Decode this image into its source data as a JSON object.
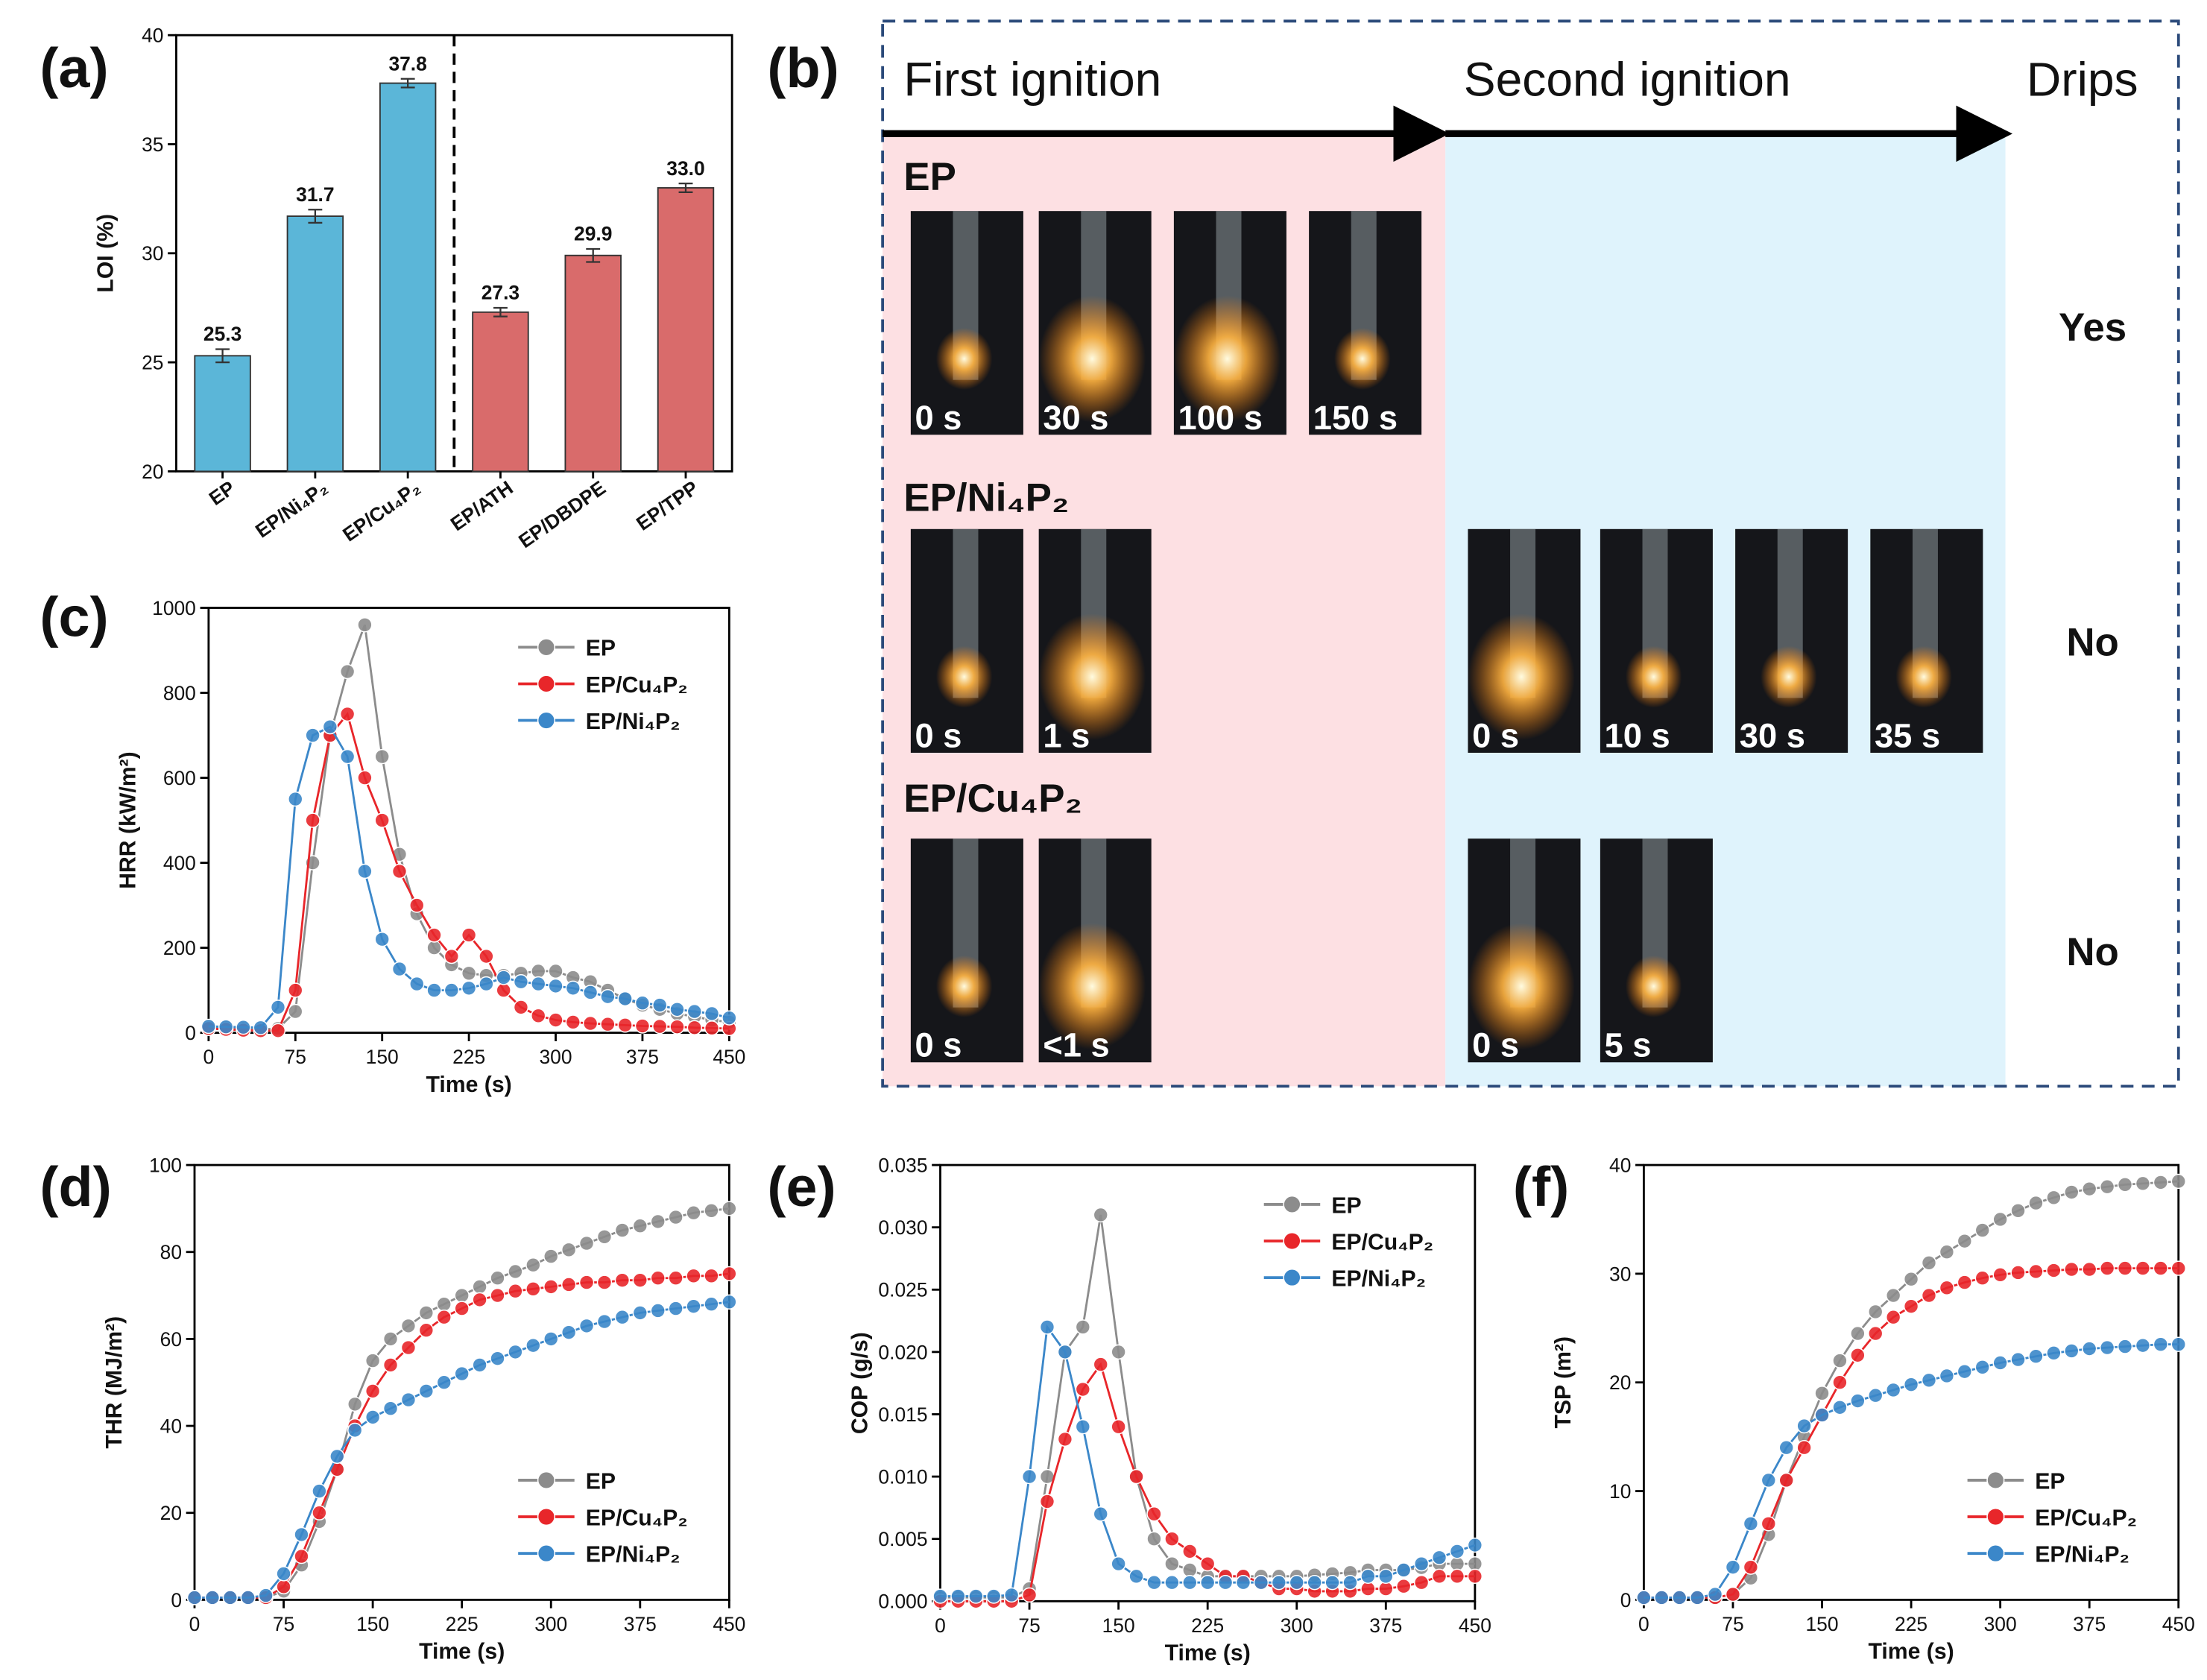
{
  "chart_data": [
    {
      "type": "bar",
      "panel": "(a)",
      "ylabel": "LOI (%)",
      "categories": [
        "EP",
        "EP/Ni₄P₂",
        "EP/Cu₄P₂",
        "EP/ATH",
        "EP/DBDPE",
        "EP/TPP"
      ],
      "values": [
        25.3,
        31.7,
        37.8,
        27.3,
        29.9,
        33.0
      ],
      "value_labels": [
        "25.3",
        "31.7",
        "37.8",
        "27.3",
        "29.9",
        "33.0"
      ],
      "errors": [
        0.3,
        0.3,
        0.2,
        0.2,
        0.3,
        0.2
      ],
      "colors": [
        "#5bb6d8",
        "#5bb6d8",
        "#5bb6d8",
        "#d96b6b",
        "#d96b6b",
        "#d96b6b"
      ],
      "ylim": [
        20,
        40
      ],
      "yticks": [
        20,
        25,
        30,
        35,
        40
      ]
    },
    {
      "type": "line",
      "panel": "(c)",
      "xlabel": "Time (s)",
      "ylabel": "HRR (kW/m²)",
      "legend": "upper right",
      "x": [
        0,
        15,
        30,
        45,
        60,
        75,
        90,
        105,
        120,
        135,
        150,
        165,
        180,
        195,
        210,
        225,
        240,
        255,
        270,
        285,
        300,
        315,
        330,
        345,
        360,
        375,
        390,
        405,
        420,
        435,
        450
      ],
      "xlim": [
        0,
        450
      ],
      "xticks": [
        0,
        75,
        150,
        225,
        300,
        375,
        450
      ],
      "ylim": [
        0,
        1000
      ],
      "yticks": [
        0,
        200,
        400,
        600,
        800,
        1000
      ],
      "series": [
        {
          "name": "EP",
          "color": "#8c8c8c",
          "values": [
            15,
            12,
            10,
            8,
            10,
            50,
            400,
            700,
            850,
            960,
            650,
            420,
            280,
            200,
            160,
            140,
            135,
            135,
            140,
            145,
            145,
            130,
            120,
            100,
            80,
            65,
            55,
            45,
            38,
            30,
            25
          ]
        },
        {
          "name": "EP/Cu₄P₂",
          "color": "#e8262a",
          "values": [
            10,
            8,
            6,
            5,
            5,
            100,
            500,
            700,
            750,
            600,
            500,
            380,
            300,
            230,
            180,
            230,
            180,
            100,
            60,
            40,
            30,
            25,
            22,
            20,
            18,
            16,
            15,
            14,
            12,
            11,
            10
          ]
        },
        {
          "name": "EP/Ni₄P₂",
          "color": "#3b87c9",
          "values": [
            15,
            14,
            13,
            12,
            60,
            550,
            700,
            720,
            650,
            380,
            220,
            150,
            115,
            100,
            100,
            105,
            115,
            130,
            120,
            115,
            110,
            105,
            95,
            85,
            80,
            70,
            65,
            55,
            50,
            45,
            35
          ]
        }
      ]
    },
    {
      "type": "line",
      "panel": "(d)",
      "xlabel": "Time (s)",
      "ylabel": "THR (MJ/m²)",
      "legend": "lower right",
      "x": [
        0,
        15,
        30,
        45,
        60,
        75,
        90,
        105,
        120,
        135,
        150,
        165,
        180,
        195,
        210,
        225,
        240,
        255,
        270,
        285,
        300,
        315,
        330,
        345,
        360,
        375,
        390,
        405,
        420,
        435,
        450
      ],
      "xlim": [
        0,
        450
      ],
      "xticks": [
        0,
        75,
        150,
        225,
        300,
        375,
        450
      ],
      "ylim": [
        0,
        100
      ],
      "yticks": [
        0,
        20,
        40,
        60,
        80,
        100
      ],
      "series": [
        {
          "name": "EP",
          "color": "#8c8c8c",
          "values": [
            0.5,
            0.5,
            0.5,
            0.5,
            0.5,
            2,
            8,
            18,
            30,
            45,
            55,
            60,
            63,
            66,
            68,
            70,
            72,
            74,
            75.5,
            77,
            79,
            80.5,
            82,
            83.5,
            85,
            86,
            87,
            88,
            89,
            89.5,
            90
          ]
        },
        {
          "name": "EP/Cu₄P₂",
          "color": "#e8262a",
          "values": [
            0.5,
            0.5,
            0.5,
            0.5,
            0.5,
            3,
            10,
            20,
            30,
            40,
            48,
            54,
            58,
            62,
            65,
            67,
            69,
            70,
            71,
            71.5,
            72,
            72.5,
            73,
            73,
            73.5,
            73.5,
            74,
            74,
            74.5,
            74.5,
            75
          ]
        },
        {
          "name": "EP/Ni₄P₂",
          "color": "#3b87c9",
          "values": [
            0.5,
            0.5,
            0.5,
            0.5,
            1,
            6,
            15,
            25,
            33,
            39,
            42,
            44,
            46,
            48,
            50,
            52,
            54,
            55.5,
            57,
            58.5,
            60,
            61.5,
            63,
            64,
            65,
            66,
            66.5,
            67,
            67.5,
            68,
            68.5
          ]
        }
      ]
    },
    {
      "type": "line",
      "panel": "(e)",
      "xlabel": "Time (s)",
      "ylabel": "COP (g/s)",
      "legend": "upper right",
      "x": [
        0,
        15,
        30,
        45,
        60,
        75,
        90,
        105,
        120,
        135,
        150,
        165,
        180,
        195,
        210,
        225,
        240,
        255,
        270,
        285,
        300,
        315,
        330,
        345,
        360,
        375,
        390,
        405,
        420,
        435,
        450
      ],
      "xlim": [
        0,
        450
      ],
      "xticks": [
        0,
        75,
        150,
        225,
        300,
        375,
        450
      ],
      "ylim": [
        0,
        0.035
      ],
      "yticks": [
        {
          "value": 0,
          "label": "0.000"
        },
        0.005,
        {
          "value": 0.01,
          "label": "0.010"
        },
        0.015,
        {
          "value": 0.02,
          "label": "0.020"
        },
        0.025,
        {
          "value": 0.03,
          "label": "0.030"
        },
        0.035
      ],
      "series": [
        {
          "name": "EP",
          "color": "#8c8c8c",
          "values": [
            0.0003,
            0.0003,
            0.0003,
            0.0003,
            0.0003,
            0.001,
            0.01,
            0.02,
            0.022,
            0.031,
            0.02,
            0.01,
            0.005,
            0.003,
            0.0025,
            0.002,
            0.002,
            0.002,
            0.002,
            0.002,
            0.002,
            0.0021,
            0.0022,
            0.0023,
            0.0025,
            0.0025,
            0.0025,
            0.0027,
            0.003,
            0.003,
            0.003
          ]
        },
        {
          "name": "EP/Cu₄P₂",
          "color": "#e8262a",
          "values": [
            0,
            0,
            0,
            0,
            0,
            0.0005,
            0.008,
            0.013,
            0.017,
            0.019,
            0.014,
            0.01,
            0.007,
            0.005,
            0.004,
            0.003,
            0.002,
            0.002,
            0.0015,
            0.001,
            0.001,
            0.0008,
            0.0008,
            0.0008,
            0.001,
            0.001,
            0.0012,
            0.0015,
            0.002,
            0.002,
            0.002
          ]
        },
        {
          "name": "EP/Ni₄P₂",
          "color": "#3b87c9",
          "values": [
            0.0004,
            0.0004,
            0.0004,
            0.0004,
            0.0005,
            0.01,
            0.022,
            0.02,
            0.014,
            0.007,
            0.003,
            0.002,
            0.0015,
            0.0015,
            0.0015,
            0.0015,
            0.0015,
            0.0015,
            0.0015,
            0.0015,
            0.0015,
            0.0015,
            0.0015,
            0.0015,
            0.002,
            0.002,
            0.0025,
            0.003,
            0.0035,
            0.004,
            0.0045
          ]
        }
      ]
    },
    {
      "type": "line",
      "panel": "(f)",
      "xlabel": "Time (s)",
      "ylabel": "TSP (m²)",
      "legend": "lower right",
      "x": [
        0,
        15,
        30,
        45,
        60,
        75,
        90,
        105,
        120,
        135,
        150,
        165,
        180,
        195,
        210,
        225,
        240,
        255,
        270,
        285,
        300,
        315,
        330,
        345,
        360,
        375,
        390,
        405,
        420,
        435,
        450
      ],
      "xlim": [
        0,
        450
      ],
      "xticks": [
        0,
        75,
        150,
        225,
        300,
        375,
        450
      ],
      "ylim": [
        0,
        40
      ],
      "yticks": [
        0,
        10,
        20,
        30,
        40
      ],
      "series": [
        {
          "name": "EP",
          "color": "#8c8c8c",
          "values": [
            0.2,
            0.2,
            0.2,
            0.2,
            0.2,
            0.5,
            2,
            6,
            11,
            15,
            19,
            22,
            24.5,
            26.5,
            28,
            29.5,
            31,
            32,
            33,
            34,
            35,
            35.8,
            36.5,
            37,
            37.5,
            37.8,
            38,
            38.2,
            38.3,
            38.4,
            38.5
          ]
        },
        {
          "name": "EP/Cu₄P₂",
          "color": "#e8262a",
          "values": [
            0.2,
            0.2,
            0.2,
            0.2,
            0.2,
            0.5,
            3,
            7,
            11,
            14,
            17,
            20,
            22.5,
            24.5,
            26,
            27,
            28,
            28.7,
            29.2,
            29.6,
            29.9,
            30.1,
            30.2,
            30.3,
            30.4,
            30.4,
            30.5,
            30.5,
            30.5,
            30.5,
            30.5
          ]
        },
        {
          "name": "EP/Ni₄P₂",
          "color": "#3b87c9",
          "values": [
            0.2,
            0.2,
            0.2,
            0.2,
            0.5,
            3,
            7,
            11,
            14,
            16,
            17,
            17.7,
            18.3,
            18.8,
            19.3,
            19.8,
            20.2,
            20.6,
            21,
            21.4,
            21.8,
            22.1,
            22.4,
            22.7,
            22.9,
            23.1,
            23.2,
            23.3,
            23.4,
            23.5,
            23.5
          ]
        }
      ]
    }
  ],
  "ignition_panel": {
    "panel": "(b)",
    "headers": [
      "First ignition",
      "Second ignition",
      "Drips"
    ],
    "rows": [
      {
        "name": "EP",
        "first": [
          "0 s",
          "30 s",
          "100 s",
          "150 s"
        ],
        "second": [],
        "drips": "Yes"
      },
      {
        "name": "EP/Ni₄P₂",
        "first": [
          "0 s",
          "1 s"
        ],
        "second": [
          "0 s",
          "10 s",
          "30 s",
          "35 s"
        ],
        "drips": "No"
      },
      {
        "name": "EP/Cu₄P₂",
        "first": [
          "0 s",
          "<1 s"
        ],
        "second": [
          "0 s",
          "5 s"
        ],
        "drips": "No"
      }
    ]
  }
}
